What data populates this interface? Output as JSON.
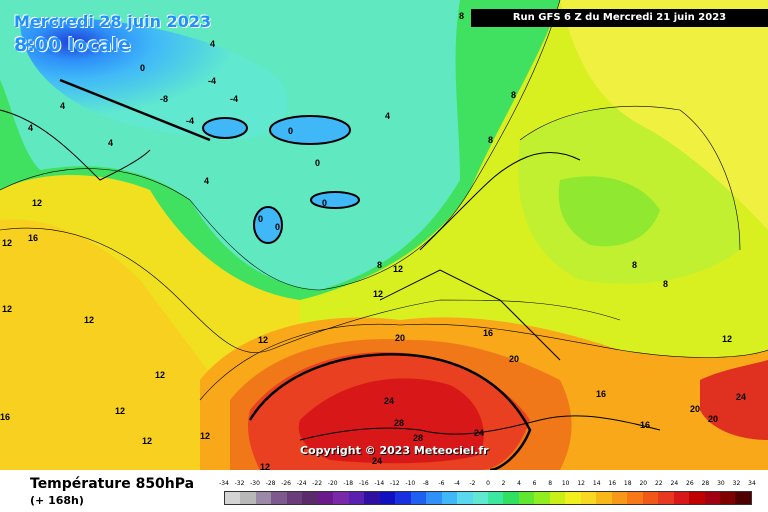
{
  "header": {
    "date_line1": "Mercredi 28 juin 2023",
    "date_line2": "8:00 locale",
    "run_info": "Run GFS 6 Z du Mercredi 21 juin 2023"
  },
  "copyright": "Copyright © 2023 Meteociel.fr",
  "footer": {
    "parameter": "Température 850hPa",
    "lead_time": "(+ 168h)"
  },
  "scale": {
    "labels": [
      "-34",
      "-32",
      "-30",
      "-28",
      "-26",
      "-24",
      "-22",
      "-20",
      "-18",
      "-16",
      "-14",
      "-12",
      "-10",
      "-8",
      "-6",
      "-4",
      "-2",
      "0",
      "2",
      "4",
      "6",
      "8",
      "10",
      "12",
      "14",
      "16",
      "18",
      "20",
      "22",
      "24",
      "26",
      "28",
      "30",
      "32",
      "34"
    ],
    "colors": [
      "#d4d4d4",
      "#b8b8b8",
      "#9a8aa8",
      "#7d5a8e",
      "#6a3c7a",
      "#5a2a6a",
      "#6a1a8a",
      "#7a28aa",
      "#5a20b0",
      "#3010a0",
      "#1010c0",
      "#1830e0",
      "#2060f0",
      "#2e90f8",
      "#40b8f8",
      "#5ad8f0",
      "#60e8d0",
      "#3ce8a0",
      "#30e060",
      "#60e830",
      "#90ee20",
      "#c8f018",
      "#f0f020",
      "#f8d820",
      "#f8b818",
      "#f89818",
      "#f87818",
      "#f05818",
      "#e83820",
      "#d81818",
      "#c00000",
      "#a00010",
      "#800000",
      "#500000"
    ]
  },
  "isotherm_labels": [
    "-8",
    "-4",
    "0",
    "4",
    "8",
    "12",
    "16",
    "20",
    "24",
    "28"
  ]
}
